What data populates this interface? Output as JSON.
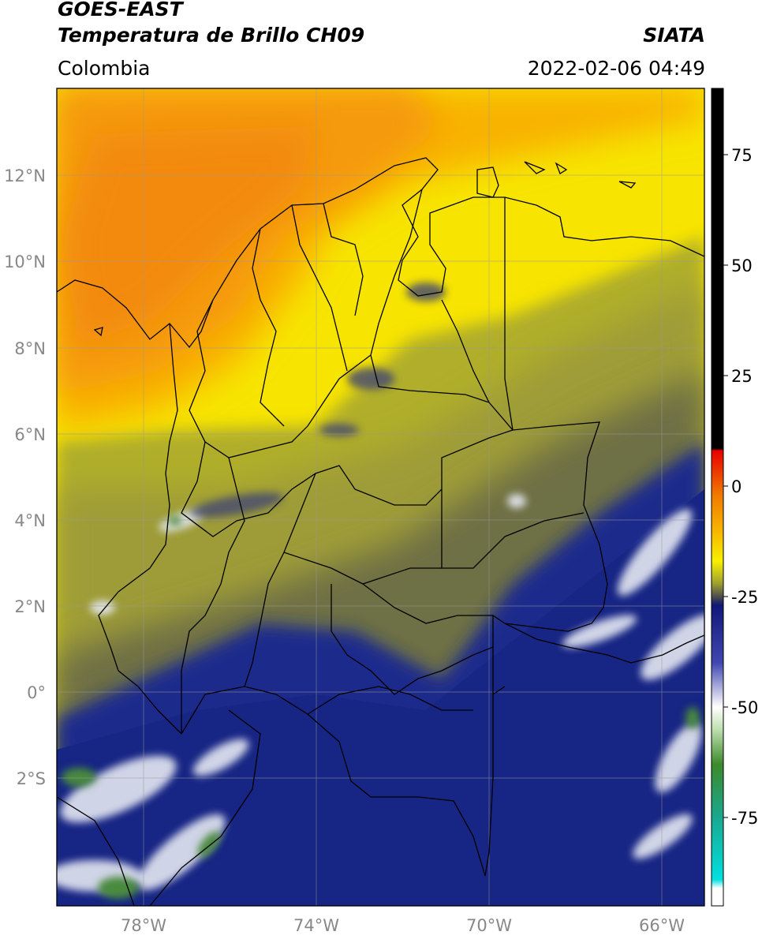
{
  "header": {
    "title_line1": "GOES-EAST",
    "title_line2": "Temperatura de Brillo CH09",
    "brand": "SIATA",
    "region": "Colombia",
    "datetime": "2022-02-06 04:49"
  },
  "map": {
    "lon_range": [
      -80,
      -65
    ],
    "lat_range": [
      -5,
      14
    ],
    "lat_labels": [
      "12°N",
      "10°N",
      "8°N",
      "6°N",
      "4°N",
      "2°N",
      "0°",
      "2°S"
    ],
    "lon_labels": [
      "78°W",
      "74°W",
      "70°W",
      "66°W"
    ],
    "colors": {
      "warm_orange": "#f59a10",
      "yellow": "#f7ea00",
      "olive": "#a6a433",
      "dark_olive": "#5e6148",
      "navy": "#1c2a8c",
      "white_cloud": "#e6e9f3",
      "green_cold": "#4a8a3c"
    }
  },
  "colorbar": {
    "ticks": [
      "75",
      "50",
      "25",
      "0",
      "-25",
      "-50",
      "-75"
    ],
    "range": [
      -95,
      90
    ],
    "stops": [
      {
        "value": 90,
        "color": "#000000"
      },
      {
        "value": 8.5,
        "color": "#000000"
      },
      {
        "value": 8,
        "color": "#e80000"
      },
      {
        "value": -2,
        "color": "#f07a00"
      },
      {
        "value": -10,
        "color": "#f8b400"
      },
      {
        "value": -17,
        "color": "#f8f000"
      },
      {
        "value": -22,
        "color": "#a0a030"
      },
      {
        "value": -25.5,
        "color": "#404050"
      },
      {
        "value": -27,
        "color": "#101878"
      },
      {
        "value": -40,
        "color": "#4048b0"
      },
      {
        "value": -47,
        "color": "#c8c8e8"
      },
      {
        "value": -50,
        "color": "#ffffff"
      },
      {
        "value": -55,
        "color": "#bfe0b0"
      },
      {
        "value": -63,
        "color": "#3c8a2a"
      },
      {
        "value": -75,
        "color": "#1aa890"
      },
      {
        "value": -89,
        "color": "#00e0e0"
      },
      {
        "value": -91,
        "color": "#ffffff"
      },
      {
        "value": -95,
        "color": "#ffffff"
      }
    ]
  }
}
